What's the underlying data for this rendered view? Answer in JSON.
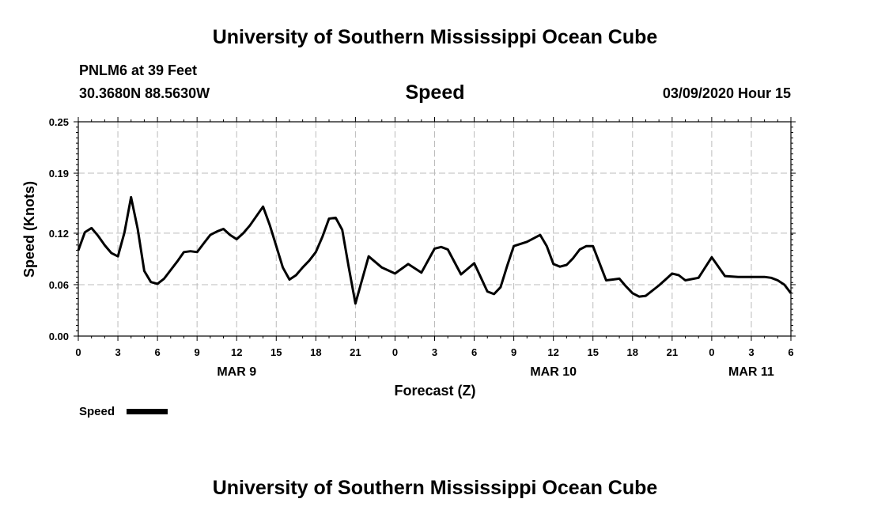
{
  "header": {
    "top_title": "University of Southern Mississippi Ocean Cube",
    "bottom_title": "University of Southern Mississippi Ocean Cube",
    "station": "PNLM6 at 39 Feet",
    "coords": "30.3680N 88.5630W",
    "variable": "Speed",
    "run_time": "03/09/2020 Hour 15"
  },
  "chart_data": {
    "type": "line",
    "title": "Speed",
    "xlabel": "Forecast (Z)",
    "ylabel": "Speed (Knots)",
    "xlim": [
      0,
      54
    ],
    "ylim": [
      0,
      0.25
    ],
    "yticks": [
      0.0,
      0.06,
      0.12,
      0.19,
      0.25
    ],
    "ytick_labels": [
      "0.00",
      "0.06",
      "0.12",
      "0.19",
      "0.25"
    ],
    "xtick_positions": [
      0,
      3,
      6,
      9,
      12,
      15,
      18,
      21,
      24,
      27,
      30,
      33,
      36,
      39,
      42,
      45,
      48,
      51,
      54
    ],
    "xtick_labels": [
      "0",
      "3",
      "6",
      "9",
      "12",
      "15",
      "18",
      "21",
      "0",
      "3",
      "6",
      "9",
      "12",
      "15",
      "18",
      "21",
      "0",
      "3",
      "6"
    ],
    "date_labels": [
      {
        "x": 12,
        "label": "MAR 9"
      },
      {
        "x": 36,
        "label": "MAR 10"
      },
      {
        "x": 51,
        "label": "MAR 11"
      }
    ],
    "grid": true,
    "legend": {
      "position": "bottom-left",
      "label": "Speed"
    },
    "series": [
      {
        "name": "Speed",
        "color": "#000000",
        "x": [
          0,
          0.5,
          1,
          1.5,
          2,
          2.5,
          3,
          3.5,
          4,
          4.5,
          5,
          5.5,
          6,
          6.5,
          7,
          7.5,
          8,
          8.5,
          9,
          9.5,
          10,
          10.5,
          11,
          11.5,
          12,
          12.5,
          13,
          13.5,
          14,
          14.5,
          15,
          15.5,
          16,
          16.5,
          17,
          17.5,
          18,
          18.5,
          19,
          19.5,
          20,
          20.5,
          21,
          22,
          23,
          24,
          25,
          26,
          27,
          27.5,
          28,
          29,
          30,
          31,
          31.5,
          32,
          32.5,
          33,
          34,
          35,
          35.5,
          36,
          36.5,
          37,
          37.5,
          38,
          38.5,
          39,
          39.5,
          40,
          40.5,
          41,
          41.5,
          42,
          42.5,
          43,
          44,
          44.5,
          45,
          45.5,
          46,
          47,
          48,
          49,
          50,
          51,
          52,
          52.5,
          53,
          53.5,
          54
        ],
        "values": [
          0.1,
          0.121,
          0.126,
          0.117,
          0.106,
          0.097,
          0.093,
          0.121,
          0.162,
          0.125,
          0.076,
          0.063,
          0.061,
          0.067,
          0.077,
          0.087,
          0.098,
          0.099,
          0.098,
          0.108,
          0.118,
          0.122,
          0.125,
          0.118,
          0.113,
          0.12,
          0.129,
          0.14,
          0.151,
          0.13,
          0.105,
          0.08,
          0.066,
          0.071,
          0.08,
          0.088,
          0.098,
          0.116,
          0.137,
          0.138,
          0.124,
          0.08,
          0.038,
          0.093,
          0.08,
          0.073,
          0.084,
          0.074,
          0.102,
          0.104,
          0.101,
          0.072,
          0.085,
          0.052,
          0.049,
          0.057,
          0.082,
          0.105,
          0.11,
          0.118,
          0.105,
          0.084,
          0.081,
          0.083,
          0.091,
          0.101,
          0.105,
          0.105,
          0.085,
          0.065,
          0.066,
          0.067,
          0.058,
          0.05,
          0.046,
          0.047,
          0.059,
          0.066,
          0.073,
          0.071,
          0.065,
          0.068,
          0.092,
          0.07,
          0.069,
          0.069,
          0.069,
          0.068,
          0.065,
          0.06,
          0.05
        ]
      }
    ]
  }
}
